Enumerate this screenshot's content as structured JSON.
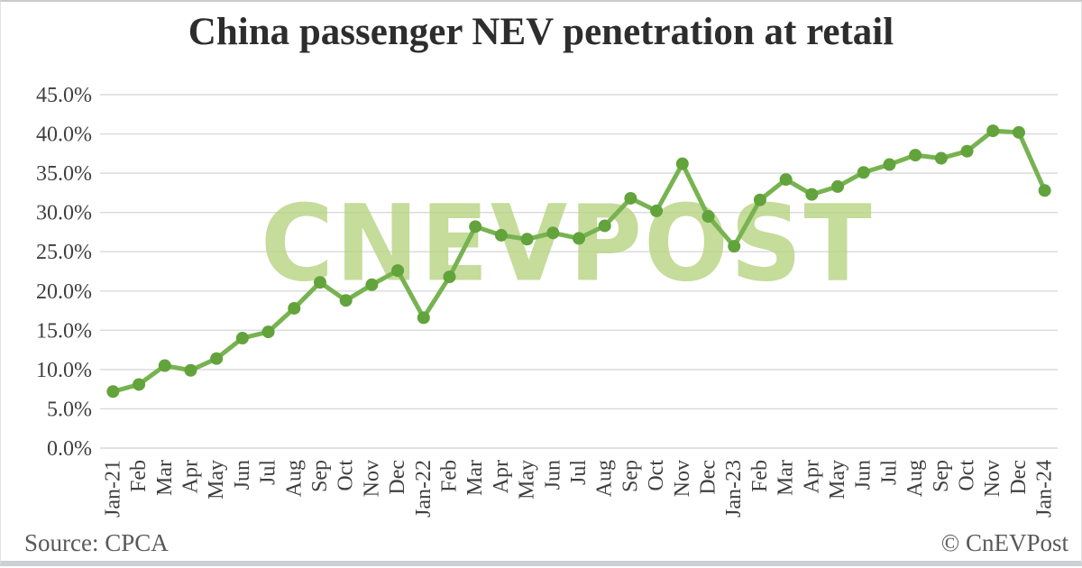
{
  "title": "China passenger NEV penetration at retail",
  "watermark": {
    "text": "CNEVPOST",
    "color": "#b9d585"
  },
  "footer": {
    "source": "Source: CPCA",
    "credit": "© CnEVPost"
  },
  "colors": {
    "line": "#77b350",
    "marker": "#62a33c",
    "gridline": "#d9d9d9",
    "axis_text": "#3f3f3f",
    "title_text": "#2d2d2d",
    "footer_text": "#595959",
    "watermark": "#b9d585",
    "border_bottom": "#ccd0d5"
  },
  "chart_data": {
    "type": "line",
    "title": "China passenger NEV penetration at retail",
    "categories": [
      "Jan-21",
      "Feb",
      "Mar",
      "Apr",
      "May",
      "Jun",
      "Jul",
      "Aug",
      "Sep",
      "Oct",
      "Nov",
      "Dec",
      "Jan-22",
      "Feb",
      "Mar",
      "Apr",
      "May",
      "Jun",
      "Jul",
      "Aug",
      "Sep",
      "Oct",
      "Nov",
      "Dec",
      "Jan-23",
      "Feb",
      "Mar",
      "Apr",
      "May",
      "Jun",
      "Jul",
      "Aug",
      "Sep",
      "Oct",
      "Nov",
      "Dec",
      "Jan-24"
    ],
    "values": [
      7.2,
      8.1,
      10.5,
      9.9,
      11.4,
      14.0,
      14.8,
      17.8,
      21.1,
      18.8,
      20.8,
      22.6,
      16.6,
      21.8,
      28.2,
      27.1,
      26.6,
      27.4,
      26.7,
      28.3,
      31.8,
      30.2,
      36.2,
      29.5,
      25.7,
      31.6,
      34.2,
      32.3,
      33.3,
      35.1,
      36.1,
      37.3,
      36.9,
      37.8,
      40.4,
      40.2,
      32.8
    ],
    "xlabel": "",
    "ylabel": "",
    "ylim": [
      0,
      45
    ],
    "ytick_step": 5,
    "ytick_labels": [
      "0.0%",
      "5.0%",
      "10.0%",
      "15.0%",
      "20.0%",
      "25.0%",
      "30.0%",
      "35.0%",
      "40.0%",
      "45.0%"
    ],
    "grid": true,
    "legend": false,
    "marker": "circle",
    "source": "CPCA"
  }
}
